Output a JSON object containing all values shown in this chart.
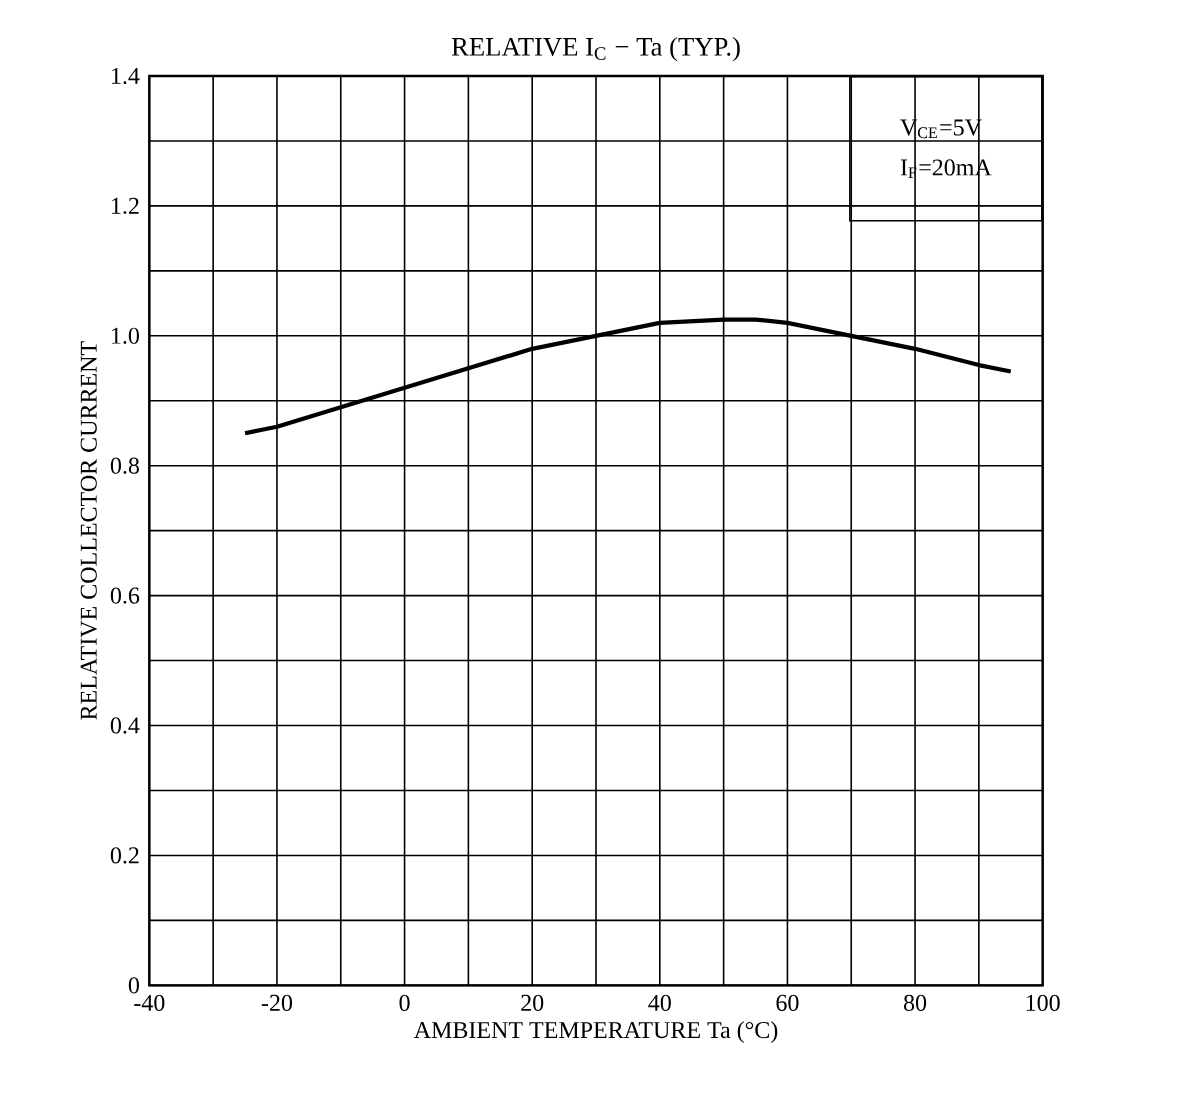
{
  "chart_data": {
    "type": "line",
    "title": "RELATIVE I$_{C}$ − Ta     (TYP.)",
    "xlabel": "AMBIENT TEMPERATURE  Ta  (°C)",
    "ylabel": "RELATIVE COLLECTOR CURRENT",
    "annotations": [
      "V$_{CE}$=5V",
      "I$_{F}$=20mA"
    ],
    "x": [
      -25,
      -20,
      -10,
      0,
      10,
      20,
      30,
      40,
      50,
      55,
      60,
      70,
      80,
      90,
      95
    ],
    "series": [
      {
        "color": "#000000",
        "values": [
          0.85,
          0.86,
          0.89,
          0.92,
          0.95,
          0.98,
          1.0,
          1.02,
          1.025,
          1.025,
          1.02,
          1.0,
          0.98,
          0.955,
          0.945
        ]
      }
    ],
    "xlim": [
      -40,
      100
    ],
    "ylim": [
      0,
      1.4
    ],
    "xticks": [
      -40,
      {
        "value": -30,
        "label": null
      },
      -20,
      {
        "value": -10,
        "label": null
      },
      0,
      {
        "value": 10,
        "label": null
      },
      20,
      {
        "value": 30,
        "label": null
      },
      40,
      {
        "value": 50,
        "label": null
      },
      60,
      {
        "value": 70,
        "label": null
      },
      80,
      {
        "value": 90,
        "label": null
      },
      100
    ],
    "yticks": [
      0,
      {
        "value": 0.1,
        "label": null
      },
      0.2,
      {
        "value": 0.3,
        "label": null
      },
      0.4,
      {
        "value": 0.5,
        "label": null
      },
      0.6,
      {
        "value": 0.7,
        "label": null
      },
      0.8,
      {
        "value": 0.9,
        "label": null
      },
      {
        "value": 1.0,
        "label": "1.0"
      },
      {
        "value": 1.1,
        "label": null
      },
      1.2,
      {
        "value": 1.3,
        "label": null
      },
      1.4
    ],
    "grid": true,
    "marker": "none",
    "line_style": "solid"
  }
}
